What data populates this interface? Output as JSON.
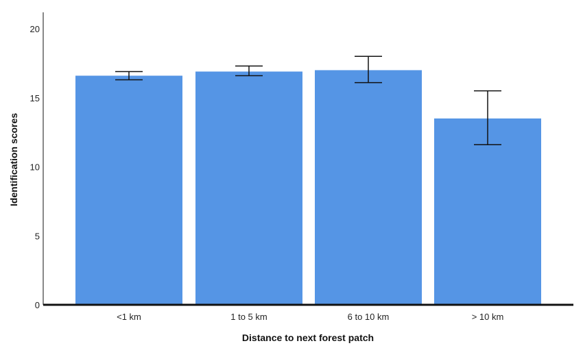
{
  "chart_data": {
    "type": "bar",
    "title": "",
    "xlabel": "Distance to next forest patch",
    "ylabel": "Identification scores",
    "categories": [
      "<1 km",
      "1 to 5 km",
      "6 to 10 km",
      "> 10 km"
    ],
    "values": [
      16.6,
      16.9,
      17.0,
      13.5
    ],
    "error_low": [
      16.3,
      16.6,
      16.1,
      11.6
    ],
    "error_high": [
      16.9,
      17.3,
      18.0,
      15.5
    ],
    "ylim": [
      0,
      21
    ],
    "yticks": [
      "0",
      "5",
      "10",
      "15",
      "20"
    ],
    "ytick_values": [
      0,
      5,
      10,
      15,
      20
    ],
    "grid": false,
    "legend": "none",
    "colors": {
      "bar": "#5595E5",
      "error_bar": "#111111",
      "axis": "#111111"
    }
  }
}
